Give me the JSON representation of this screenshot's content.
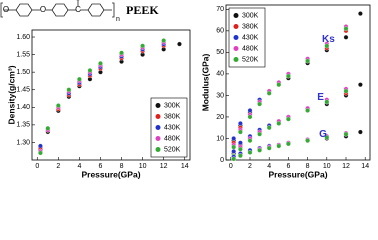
{
  "structure": {
    "atoms": [
      "O",
      "O",
      "C",
      "O"
    ],
    "subscript": "n",
    "label": "PEEK"
  },
  "chart_data": [
    {
      "type": "scatter",
      "xlabel": "Pressure(GPa)",
      "ylabel": "Density(g/cm³)",
      "xlim": [
        -0.5,
        14.5
      ],
      "ylim": [
        1.25,
        1.62
      ],
      "xticks": [
        0,
        2,
        4,
        6,
        8,
        10,
        12,
        14
      ],
      "yticks": [
        {
          "value": 1.3,
          "label": "1.30"
        },
        {
          "value": 1.35,
          "label": "1.35"
        },
        {
          "value": 1.4,
          "label": "1.40"
        },
        {
          "value": 1.45,
          "label": "1.45"
        },
        {
          "value": 1.5,
          "label": "1.50"
        },
        {
          "value": 1.55,
          "label": "1.55"
        },
        {
          "value": 1.6,
          "label": "1.60"
        }
      ],
      "legend_position": "lower right",
      "x": [
        0.3,
        1,
        2,
        3,
        4,
        5,
        6,
        8,
        10,
        12,
        13.5
      ],
      "series": [
        {
          "name": "300K",
          "color": "#111111",
          "values": [
            1.28,
            1.33,
            1.39,
            1.43,
            1.46,
            1.48,
            1.5,
            1.53,
            1.55,
            1.565,
            1.58
          ]
        },
        {
          "name": "380K",
          "color": "#e0201c",
          "values": [
            1.285,
            1.335,
            1.395,
            1.435,
            1.465,
            1.49,
            1.51,
            1.54,
            1.56,
            1.575,
            null
          ]
        },
        {
          "name": "430K",
          "color": "#2233cc",
          "values": [
            1.29,
            1.34,
            1.4,
            1.44,
            1.47,
            1.495,
            1.515,
            1.545,
            1.565,
            1.58,
            null
          ]
        },
        {
          "name": "480K",
          "color": "#e040c0",
          "values": [
            1.275,
            1.335,
            1.4,
            1.445,
            1.475,
            1.5,
            1.52,
            1.55,
            1.57,
            1.585,
            null
          ]
        },
        {
          "name": "520K",
          "color": "#33aa33",
          "values": [
            1.27,
            1.34,
            1.405,
            1.45,
            1.48,
            1.505,
            1.525,
            1.555,
            1.575,
            1.59,
            null
          ]
        }
      ]
    },
    {
      "type": "scatter-groups",
      "xlabel": "Pressure(GPa)",
      "ylabel": "Modulus(GPa)",
      "xlim": [
        -0.5,
        14.5
      ],
      "ylim": [
        0,
        72
      ],
      "xticks": [
        0,
        2,
        4,
        6,
        8,
        10,
        12,
        14
      ],
      "yticks": [
        0,
        10,
        20,
        30,
        40,
        50,
        60,
        70
      ],
      "legend_position": "upper left",
      "x": [
        0.3,
        1,
        2,
        3,
        4,
        5,
        6,
        8,
        10,
        12,
        13.5
      ],
      "legend": [
        {
          "name": "300K",
          "color": "#111111"
        },
        {
          "name": "380K",
          "color": "#e0201c"
        },
        {
          "name": "430K",
          "color": "#2233cc"
        },
        {
          "name": "480K",
          "color": "#e040c0"
        },
        {
          "name": "520K",
          "color": "#33aa33"
        }
      ],
      "groups": [
        {
          "label": "Ks",
          "series": [
            {
              "values": [
                9,
                16,
                22,
                27,
                31,
                35,
                38,
                45,
                51,
                57,
                68
              ]
            },
            {
              "values": [
                8,
                15,
                21,
                26,
                31,
                35,
                39,
                46,
                52,
                60,
                null
              ]
            },
            {
              "values": [
                10,
                17,
                23,
                28,
                32,
                36,
                40,
                47,
                53,
                61,
                null
              ]
            },
            {
              "values": [
                7,
                14,
                21,
                27,
                32,
                36,
                40,
                47,
                54,
                62,
                null
              ]
            },
            {
              "values": [
                6,
                13,
                20,
                26,
                31,
                35,
                39,
                46,
                53,
                61,
                null
              ]
            }
          ]
        },
        {
          "label": "E",
          "series": [
            {
              "values": [
                3,
                7,
                10,
                13,
                15,
                17,
                19,
                23,
                26,
                30,
                35
              ]
            },
            {
              "values": [
                4,
                7,
                11,
                13,
                16,
                18,
                20,
                23,
                27,
                31,
                null
              ]
            },
            {
              "values": [
                4,
                8,
                11,
                14,
                16,
                18,
                20,
                24,
                27,
                32,
                null
              ]
            },
            {
              "values": [
                2,
                6,
                10,
                13,
                15,
                18,
                20,
                24,
                28,
                33,
                null
              ]
            },
            {
              "values": [
                2,
                5,
                9,
                12,
                15,
                17,
                19,
                23,
                27,
                32,
                null
              ]
            }
          ]
        },
        {
          "label": "G",
          "series": [
            {
              "values": [
                1,
                2.5,
                4,
                5,
                6,
                7,
                7.5,
                9,
                10,
                11,
                13
              ]
            },
            {
              "values": [
                1.5,
                3,
                4,
                5,
                6,
                7,
                8,
                9,
                10.5,
                12,
                null
              ]
            },
            {
              "values": [
                1.5,
                3,
                4.5,
                5.5,
                6.5,
                7,
                8,
                9.5,
                11,
                12,
                null
              ]
            },
            {
              "values": [
                0.5,
                2,
                3.5,
                5,
                6,
                7,
                8,
                9.5,
                11,
                12.5,
                null
              ]
            },
            {
              "values": [
                0.5,
                2,
                3.5,
                4.5,
                5.5,
                6.5,
                7.5,
                9,
                10.5,
                12,
                null
              ]
            }
          ]
        }
      ]
    }
  ]
}
